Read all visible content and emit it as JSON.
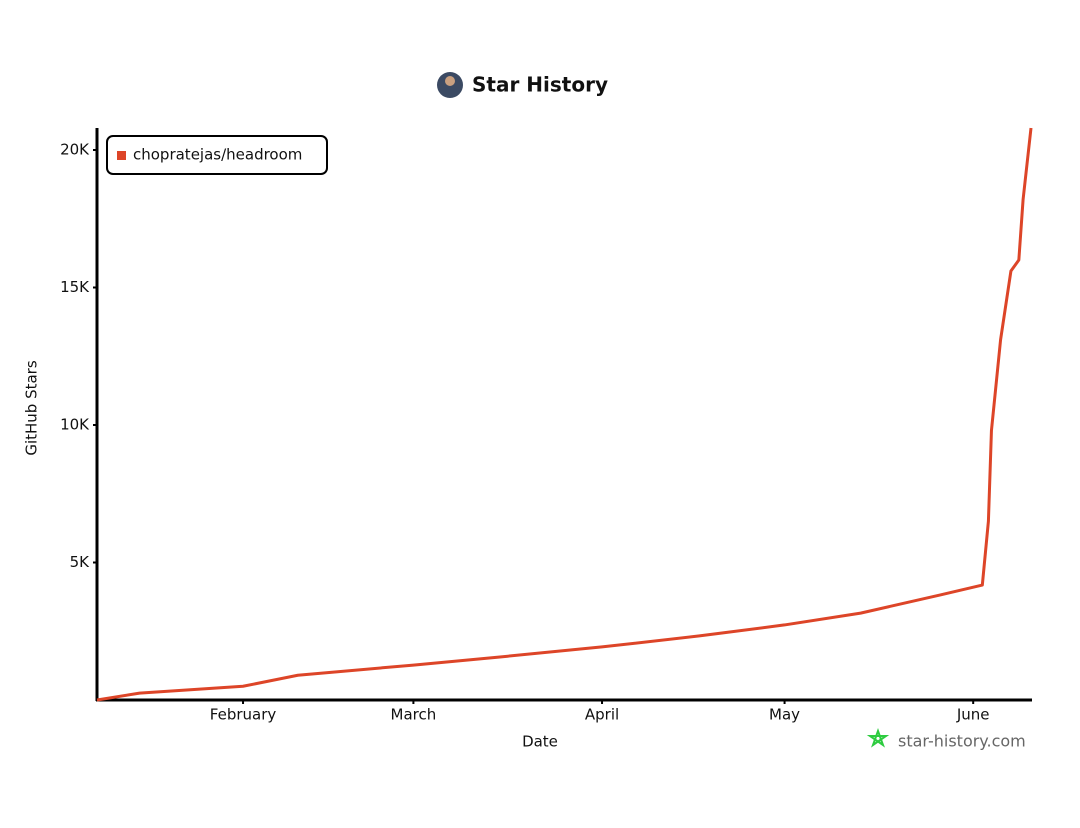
{
  "chart_data": {
    "type": "line",
    "title": "Star History",
    "x_label": "Date",
    "y_label": "GitHub Stars",
    "watermark": "star-history.com",
    "x": [
      7,
      14,
      31,
      40,
      59,
      73,
      90,
      106,
      120,
      132.5,
      145.6,
      152.5,
      153.5,
      154,
      155.5,
      157.2,
      158.5,
      159.2,
      160.5
    ],
    "series": [
      {
        "name": "chopratejas/headroom",
        "color": "#dd4528",
        "values": [
          0,
          250,
          500,
          900,
          1270,
          1560,
          1930,
          2330,
          2730,
          3160,
          3820,
          4180,
          6500,
          9800,
          13100,
          15600,
          16000,
          18200,
          20800
        ]
      }
    ],
    "xlim": [
      7,
      160.5
    ],
    "xticks": [
      {
        "value": 31,
        "label": "February"
      },
      {
        "value": 59,
        "label": "March"
      },
      {
        "value": 90,
        "label": "April"
      },
      {
        "value": 120,
        "label": "May"
      },
      {
        "value": 151,
        "label": "June"
      }
    ],
    "ylim": [
      0,
      20800
    ],
    "yticks": [
      {
        "value": 5000,
        "label": "5K"
      },
      {
        "value": 10000,
        "label": "10K"
      },
      {
        "value": 15000,
        "label": "15K"
      },
      {
        "value": 20000,
        "label": "20K"
      }
    ],
    "grid": false,
    "legend": "top-left"
  }
}
